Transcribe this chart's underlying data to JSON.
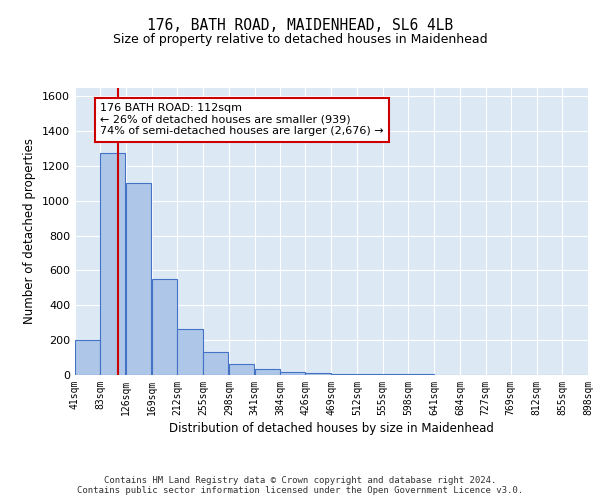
{
  "title1": "176, BATH ROAD, MAIDENHEAD, SL6 4LB",
  "title2": "Size of property relative to detached houses in Maidenhead",
  "xlabel": "Distribution of detached houses by size in Maidenhead",
  "ylabel": "Number of detached properties",
  "bin_edges": [
    41,
    83,
    126,
    169,
    212,
    255,
    298,
    341,
    384,
    426,
    469,
    512,
    555,
    598,
    641,
    684,
    727,
    769,
    812,
    855,
    898
  ],
  "bar_heights": [
    200,
    1275,
    1100,
    550,
    265,
    130,
    65,
    35,
    20,
    10,
    8,
    5,
    4,
    3,
    2,
    2,
    1,
    1,
    1,
    1
  ],
  "bar_color": "#aec6e8",
  "bar_edge_color": "#4472c4",
  "property_size": 112,
  "red_line_color": "#cc0000",
  "annotation_line1": "176 BATH ROAD: 112sqm",
  "annotation_line2": "← 26% of detached houses are smaller (939)",
  "annotation_line3": "74% of semi-detached houses are larger (2,676) →",
  "annotation_box_color": "#ffffff",
  "annotation_box_edge": "#cc0000",
  "footer_text": "Contains HM Land Registry data © Crown copyright and database right 2024.\nContains public sector information licensed under the Open Government Licence v3.0.",
  "ylim": [
    0,
    1650
  ],
  "background_color": "#dce9f5",
  "fig_background": "#ffffff"
}
